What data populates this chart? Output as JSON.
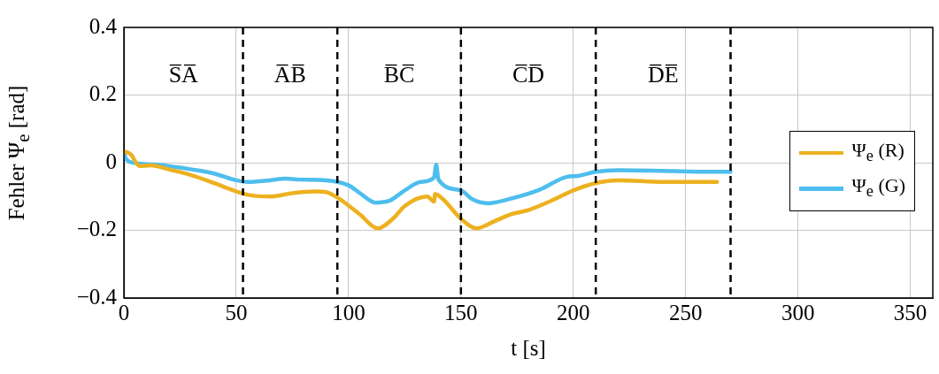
{
  "chart_data": {
    "type": "line",
    "xlabel": "t [s]",
    "ylabel": "Fehler Ψ$_{e}$ [rad]",
    "xlim": [
      0,
      360
    ],
    "xticks": [
      0,
      50,
      100,
      150,
      200,
      250,
      300,
      350
    ],
    "ylim": [
      -0.4,
      0.4
    ],
    "yticks": [
      {
        "value": -0.4,
        "label": "−0.4"
      },
      {
        "value": -0.2,
        "label": "−0.2"
      },
      0,
      0.2,
      0.4
    ],
    "grid": true,
    "legend": "right",
    "line_style": "solid",
    "marker": "none",
    "series": [
      {
        "name": "Ψ$_{e}$ (R)",
        "color": "#edb120",
        "x": [
          0,
          3,
          7,
          12,
          20,
          30,
          40,
          50,
          55,
          65,
          75,
          85,
          90,
          95,
          105,
          113,
          120,
          125,
          135,
          138,
          138.5,
          142,
          150,
          157,
          165,
          172,
          180,
          190,
          200,
          210,
          220,
          240,
          264
        ],
        "values": [
          0.034,
          0.025,
          -0.01,
          -0.008,
          -0.02,
          -0.037,
          -0.06,
          -0.085,
          -0.095,
          -0.1,
          -0.09,
          -0.085,
          -0.087,
          -0.103,
          -0.153,
          -0.194,
          -0.164,
          -0.128,
          -0.1,
          -0.115,
          -0.093,
          -0.108,
          -0.166,
          -0.194,
          -0.173,
          -0.153,
          -0.14,
          -0.113,
          -0.082,
          -0.06,
          -0.052,
          -0.057,
          -0.057
        ]
      },
      {
        "name": "Ψ$_{e}$ (G)",
        "color": "#4dbeee",
        "x": [
          0,
          1,
          5,
          15,
          30,
          40,
          50,
          55,
          65,
          72,
          78,
          90,
          100,
          105,
          112,
          118,
          125,
          132,
          138,
          139,
          140,
          150,
          155,
          162,
          170,
          185,
          197,
          202,
          210,
          220,
          240,
          260,
          270
        ],
        "values": [
          0.03,
          0.01,
          -0.001,
          -0.006,
          -0.02,
          -0.032,
          -0.052,
          -0.057,
          -0.052,
          -0.047,
          -0.05,
          -0.052,
          -0.067,
          -0.09,
          -0.118,
          -0.113,
          -0.082,
          -0.057,
          -0.044,
          -0.006,
          -0.05,
          -0.082,
          -0.108,
          -0.12,
          -0.11,
          -0.08,
          -0.042,
          -0.039,
          -0.027,
          -0.022,
          -0.024,
          -0.027,
          -0.027
        ]
      }
    ],
    "ref_lines": [
      {
        "axis": "x",
        "value": 53,
        "color": "#000000",
        "line_style": "dashed"
      },
      {
        "axis": "x",
        "value": 95,
        "color": "#000000",
        "line_style": "dashed"
      },
      {
        "axis": "x",
        "value": 150,
        "color": "#000000",
        "line_style": "dashed"
      },
      {
        "axis": "x",
        "value": 210,
        "color": "#000000",
        "line_style": "dashed"
      },
      {
        "axis": "x",
        "value": 270,
        "color": "#000000",
        "line_style": "dashed"
      }
    ],
    "annotations": [
      "S̅A̅",
      "A̅B̅",
      "B̅C̅",
      "C̅D̅",
      "D̅E̅"
    ]
  }
}
